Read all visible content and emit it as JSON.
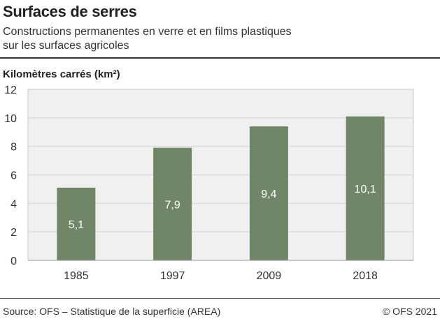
{
  "header": {
    "title": "Surfaces de serres",
    "subtitle_line1": "Constructions permanentes en verre et en films plastiques",
    "subtitle_line2": "sur les surfaces agricoles"
  },
  "footer": {
    "source": "Source: OFS – Statistique de la superficie (AREA)",
    "copyright": "© OFS 2021"
  },
  "colors": {
    "bar": "#718669",
    "plot_background": "#f0f0f0",
    "grid": "#dcdcdc"
  },
  "chart_data": {
    "type": "bar",
    "ylabel": "Kilomètres carrés (km²)",
    "categories": [
      "1985",
      "1997",
      "2009",
      "2018"
    ],
    "values": [
      5.1,
      7.9,
      9.4,
      10.1
    ],
    "data_labels": [
      "5,1",
      "7,9",
      "9,4",
      "10,1"
    ],
    "ylim": [
      0,
      12
    ],
    "yticks": [
      0,
      2,
      4,
      6,
      8,
      10,
      12
    ],
    "grid": true,
    "legend": "none"
  }
}
